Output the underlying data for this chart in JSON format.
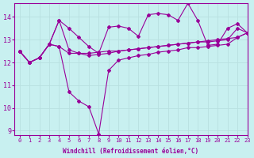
{
  "xlabel": "Windchill (Refroidissement éolien,°C)",
  "background_color": "#c8f0f0",
  "line_color": "#990099",
  "grid_color": "#b8e0e0",
  "xlim": [
    -0.5,
    23
  ],
  "ylim": [
    8.8,
    14.6
  ],
  "yticks": [
    9,
    10,
    11,
    12,
    13,
    14
  ],
  "xticks": [
    0,
    1,
    2,
    3,
    4,
    5,
    6,
    7,
    8,
    9,
    10,
    11,
    12,
    13,
    14,
    15,
    16,
    17,
    18,
    19,
    20,
    21,
    22,
    23
  ],
  "series": [
    [
      12.5,
      12.0,
      12.2,
      12.8,
      12.7,
      10.7,
      10.3,
      10.05,
      8.85,
      11.65,
      12.1,
      12.2,
      12.3,
      12.35,
      12.45,
      12.5,
      12.55,
      12.65,
      12.65,
      12.7,
      12.75,
      12.8,
      13.1,
      13.3
    ],
    [
      12.5,
      12.0,
      12.2,
      12.8,
      13.85,
      13.5,
      13.1,
      12.7,
      12.4,
      13.55,
      13.6,
      13.5,
      13.15,
      14.1,
      14.15,
      14.1,
      13.85,
      14.6,
      13.85,
      12.75,
      12.8,
      13.5,
      13.7,
      13.3
    ],
    [
      12.5,
      12.0,
      12.2,
      12.8,
      13.85,
      12.55,
      12.4,
      12.3,
      12.35,
      12.4,
      12.5,
      12.55,
      12.6,
      12.65,
      12.7,
      12.75,
      12.8,
      12.85,
      12.9,
      12.9,
      12.95,
      13.0,
      13.5,
      13.3
    ],
    [
      12.5,
      12.0,
      12.2,
      12.8,
      12.7,
      12.4,
      12.4,
      12.4,
      12.45,
      12.5,
      12.5,
      12.55,
      12.6,
      12.65,
      12.7,
      12.75,
      12.8,
      12.85,
      12.9,
      12.95,
      13.0,
      13.05,
      13.1,
      13.3
    ]
  ]
}
